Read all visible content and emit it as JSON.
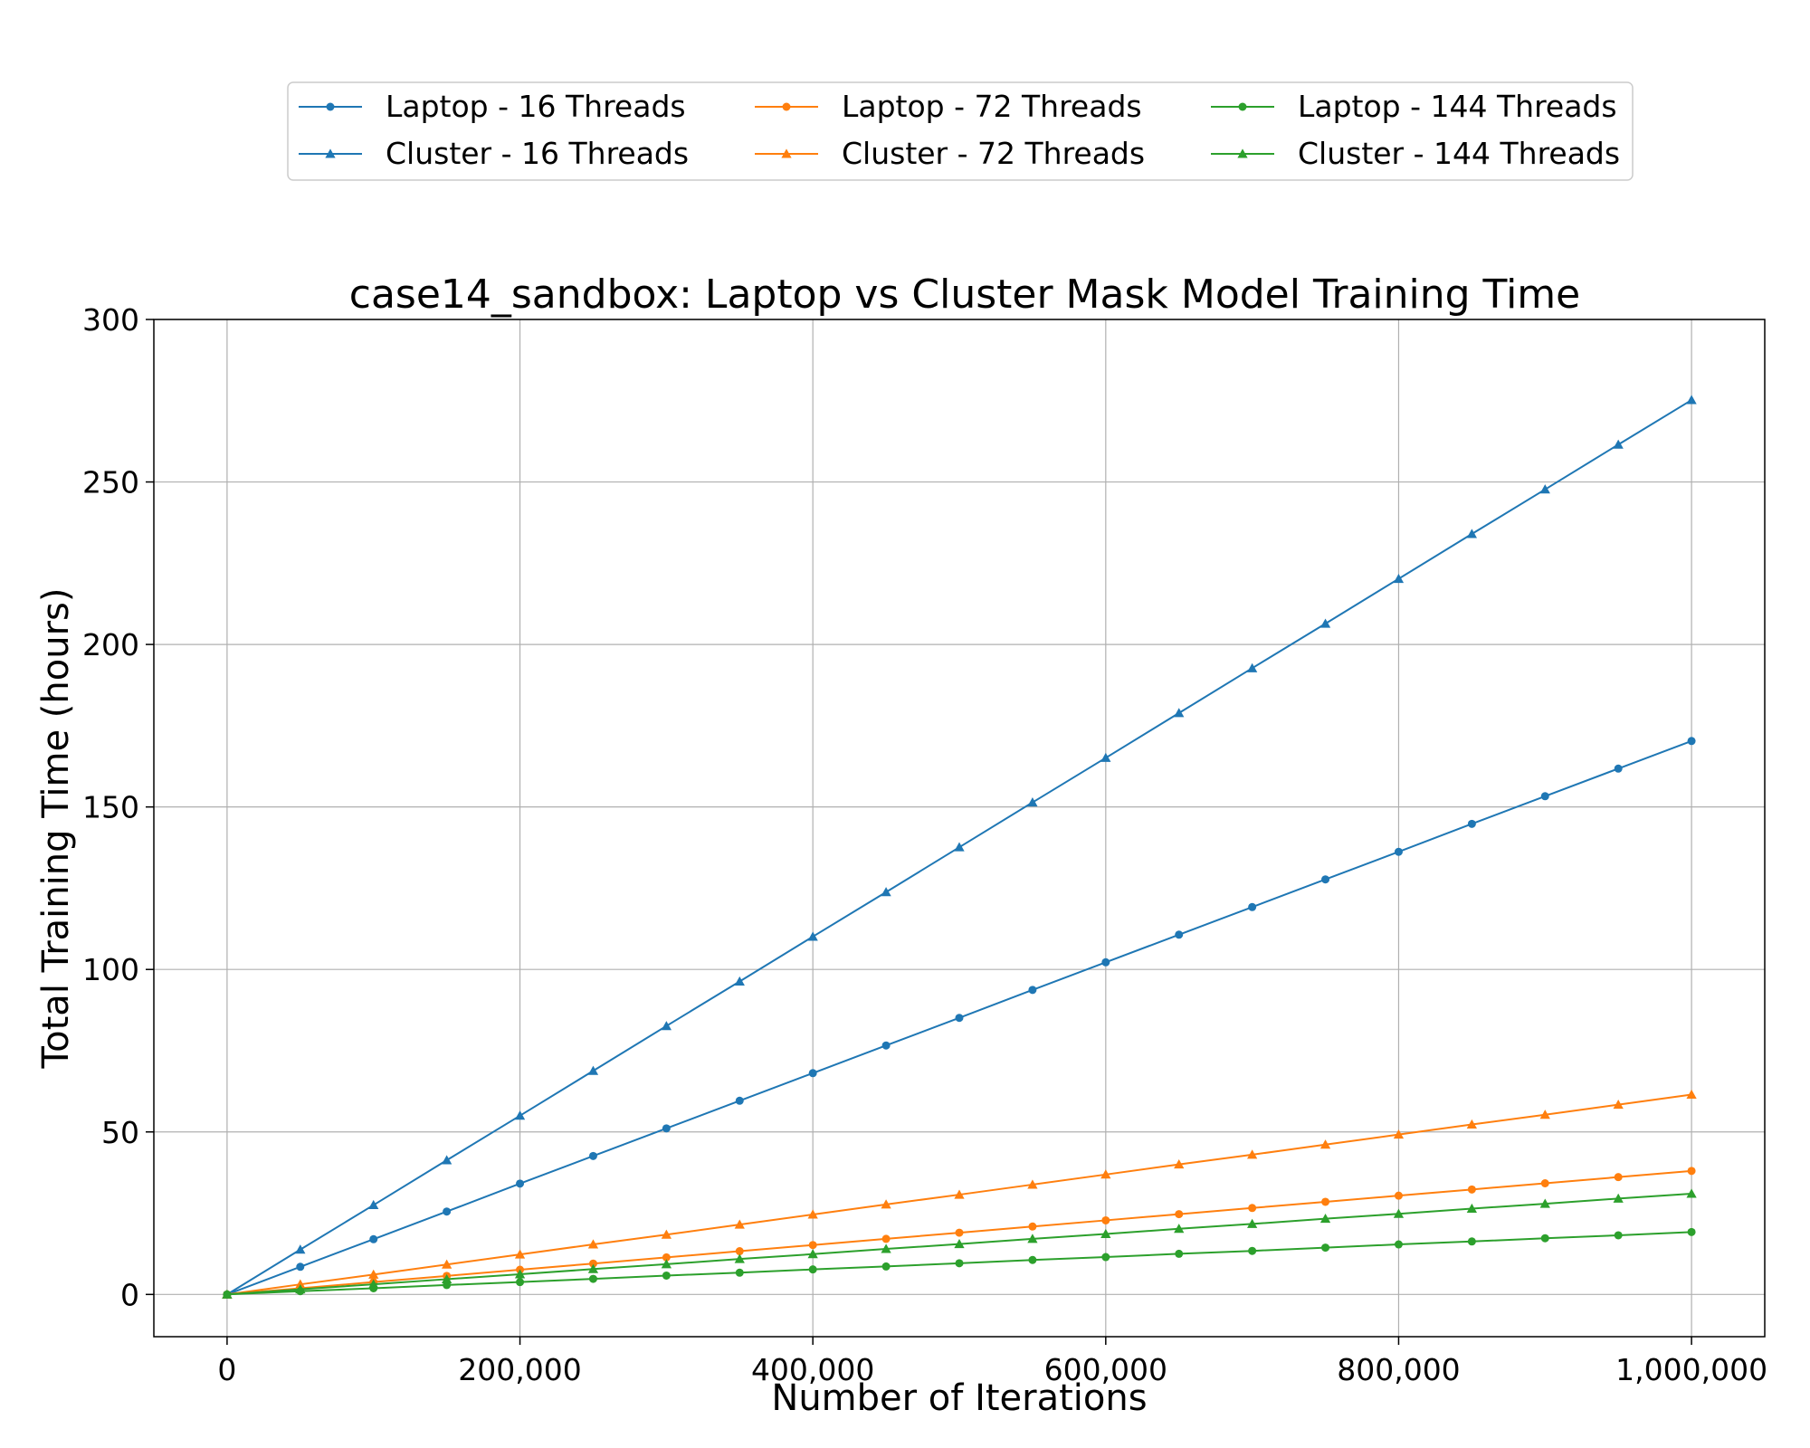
{
  "chart_data": {
    "type": "line",
    "title": "case14_sandbox: Laptop vs Cluster Mask Model Training Time",
    "xlabel": "Number of Iterations",
    "ylabel": "Total Training Time (hours)",
    "xlim": [
      -50000,
      1050000
    ],
    "ylim": [
      -13,
      300
    ],
    "xticks": [
      0,
      200000,
      400000,
      600000,
      800000,
      1000000
    ],
    "xtick_labels": [
      "0",
      "200,000",
      "400,000",
      "600,000",
      "800,000",
      "1,000,000"
    ],
    "yticks": [
      0,
      50,
      100,
      150,
      200,
      250,
      300
    ],
    "ytick_labels": [
      "0",
      "50",
      "100",
      "150",
      "200",
      "250",
      "300"
    ],
    "grid": true,
    "legend_position": "top-center-outside",
    "x": [
      0,
      50000,
      100000,
      150000,
      200000,
      250000,
      300000,
      350000,
      400000,
      450000,
      500000,
      550000,
      600000,
      650000,
      700000,
      750000,
      800000,
      850000,
      900000,
      950000,
      1000000
    ],
    "series": [
      {
        "name": "Laptop - 16 Threads",
        "color": "#1f77b4",
        "marker": "circle",
        "values": [
          0,
          8.5,
          17.0,
          25.5,
          34.1,
          42.6,
          51.1,
          59.6,
          68.1,
          76.6,
          85.1,
          93.7,
          102.2,
          110.7,
          119.2,
          127.7,
          136.2,
          144.8,
          153.3,
          161.8,
          170.3
        ]
      },
      {
        "name": "Cluster - 16 Threads",
        "color": "#1f77b4",
        "marker": "triangle",
        "values": [
          0,
          13.8,
          27.5,
          41.3,
          55.0,
          68.8,
          82.6,
          96.3,
          110.1,
          123.8,
          137.6,
          151.4,
          165.1,
          178.9,
          192.7,
          206.4,
          220.2,
          234.0,
          247.7,
          261.5,
          275.2
        ]
      },
      {
        "name": "Laptop - 72 Threads",
        "color": "#ff7f0e",
        "marker": "circle",
        "values": [
          0,
          1.9,
          3.8,
          5.7,
          7.6,
          9.5,
          11.4,
          13.3,
          15.2,
          17.1,
          19.0,
          20.9,
          22.8,
          24.7,
          26.6,
          28.5,
          30.4,
          32.3,
          34.2,
          36.1,
          38.0
        ]
      },
      {
        "name": "Cluster - 72 Threads",
        "color": "#ff7f0e",
        "marker": "triangle",
        "values": [
          0,
          3.1,
          6.1,
          9.2,
          12.3,
          15.4,
          18.4,
          21.5,
          24.6,
          27.7,
          30.7,
          33.8,
          36.9,
          40.0,
          43.0,
          46.1,
          49.2,
          52.3,
          55.3,
          58.4,
          61.5
        ]
      },
      {
        "name": "Laptop - 144 Threads",
        "color": "#2ca02c",
        "marker": "circle",
        "values": [
          0,
          1.0,
          1.9,
          2.9,
          3.8,
          4.8,
          5.8,
          6.7,
          7.7,
          8.6,
          9.6,
          10.6,
          11.5,
          12.5,
          13.4,
          14.4,
          15.4,
          16.3,
          17.3,
          18.2,
          19.2
        ]
      },
      {
        "name": "Cluster - 144 Threads",
        "color": "#2ca02c",
        "marker": "triangle",
        "values": [
          0,
          1.6,
          3.1,
          4.7,
          6.2,
          7.8,
          9.3,
          10.9,
          12.4,
          14.0,
          15.5,
          17.1,
          18.6,
          20.2,
          21.7,
          23.3,
          24.8,
          26.4,
          27.9,
          29.5,
          31.0
        ]
      }
    ]
  }
}
